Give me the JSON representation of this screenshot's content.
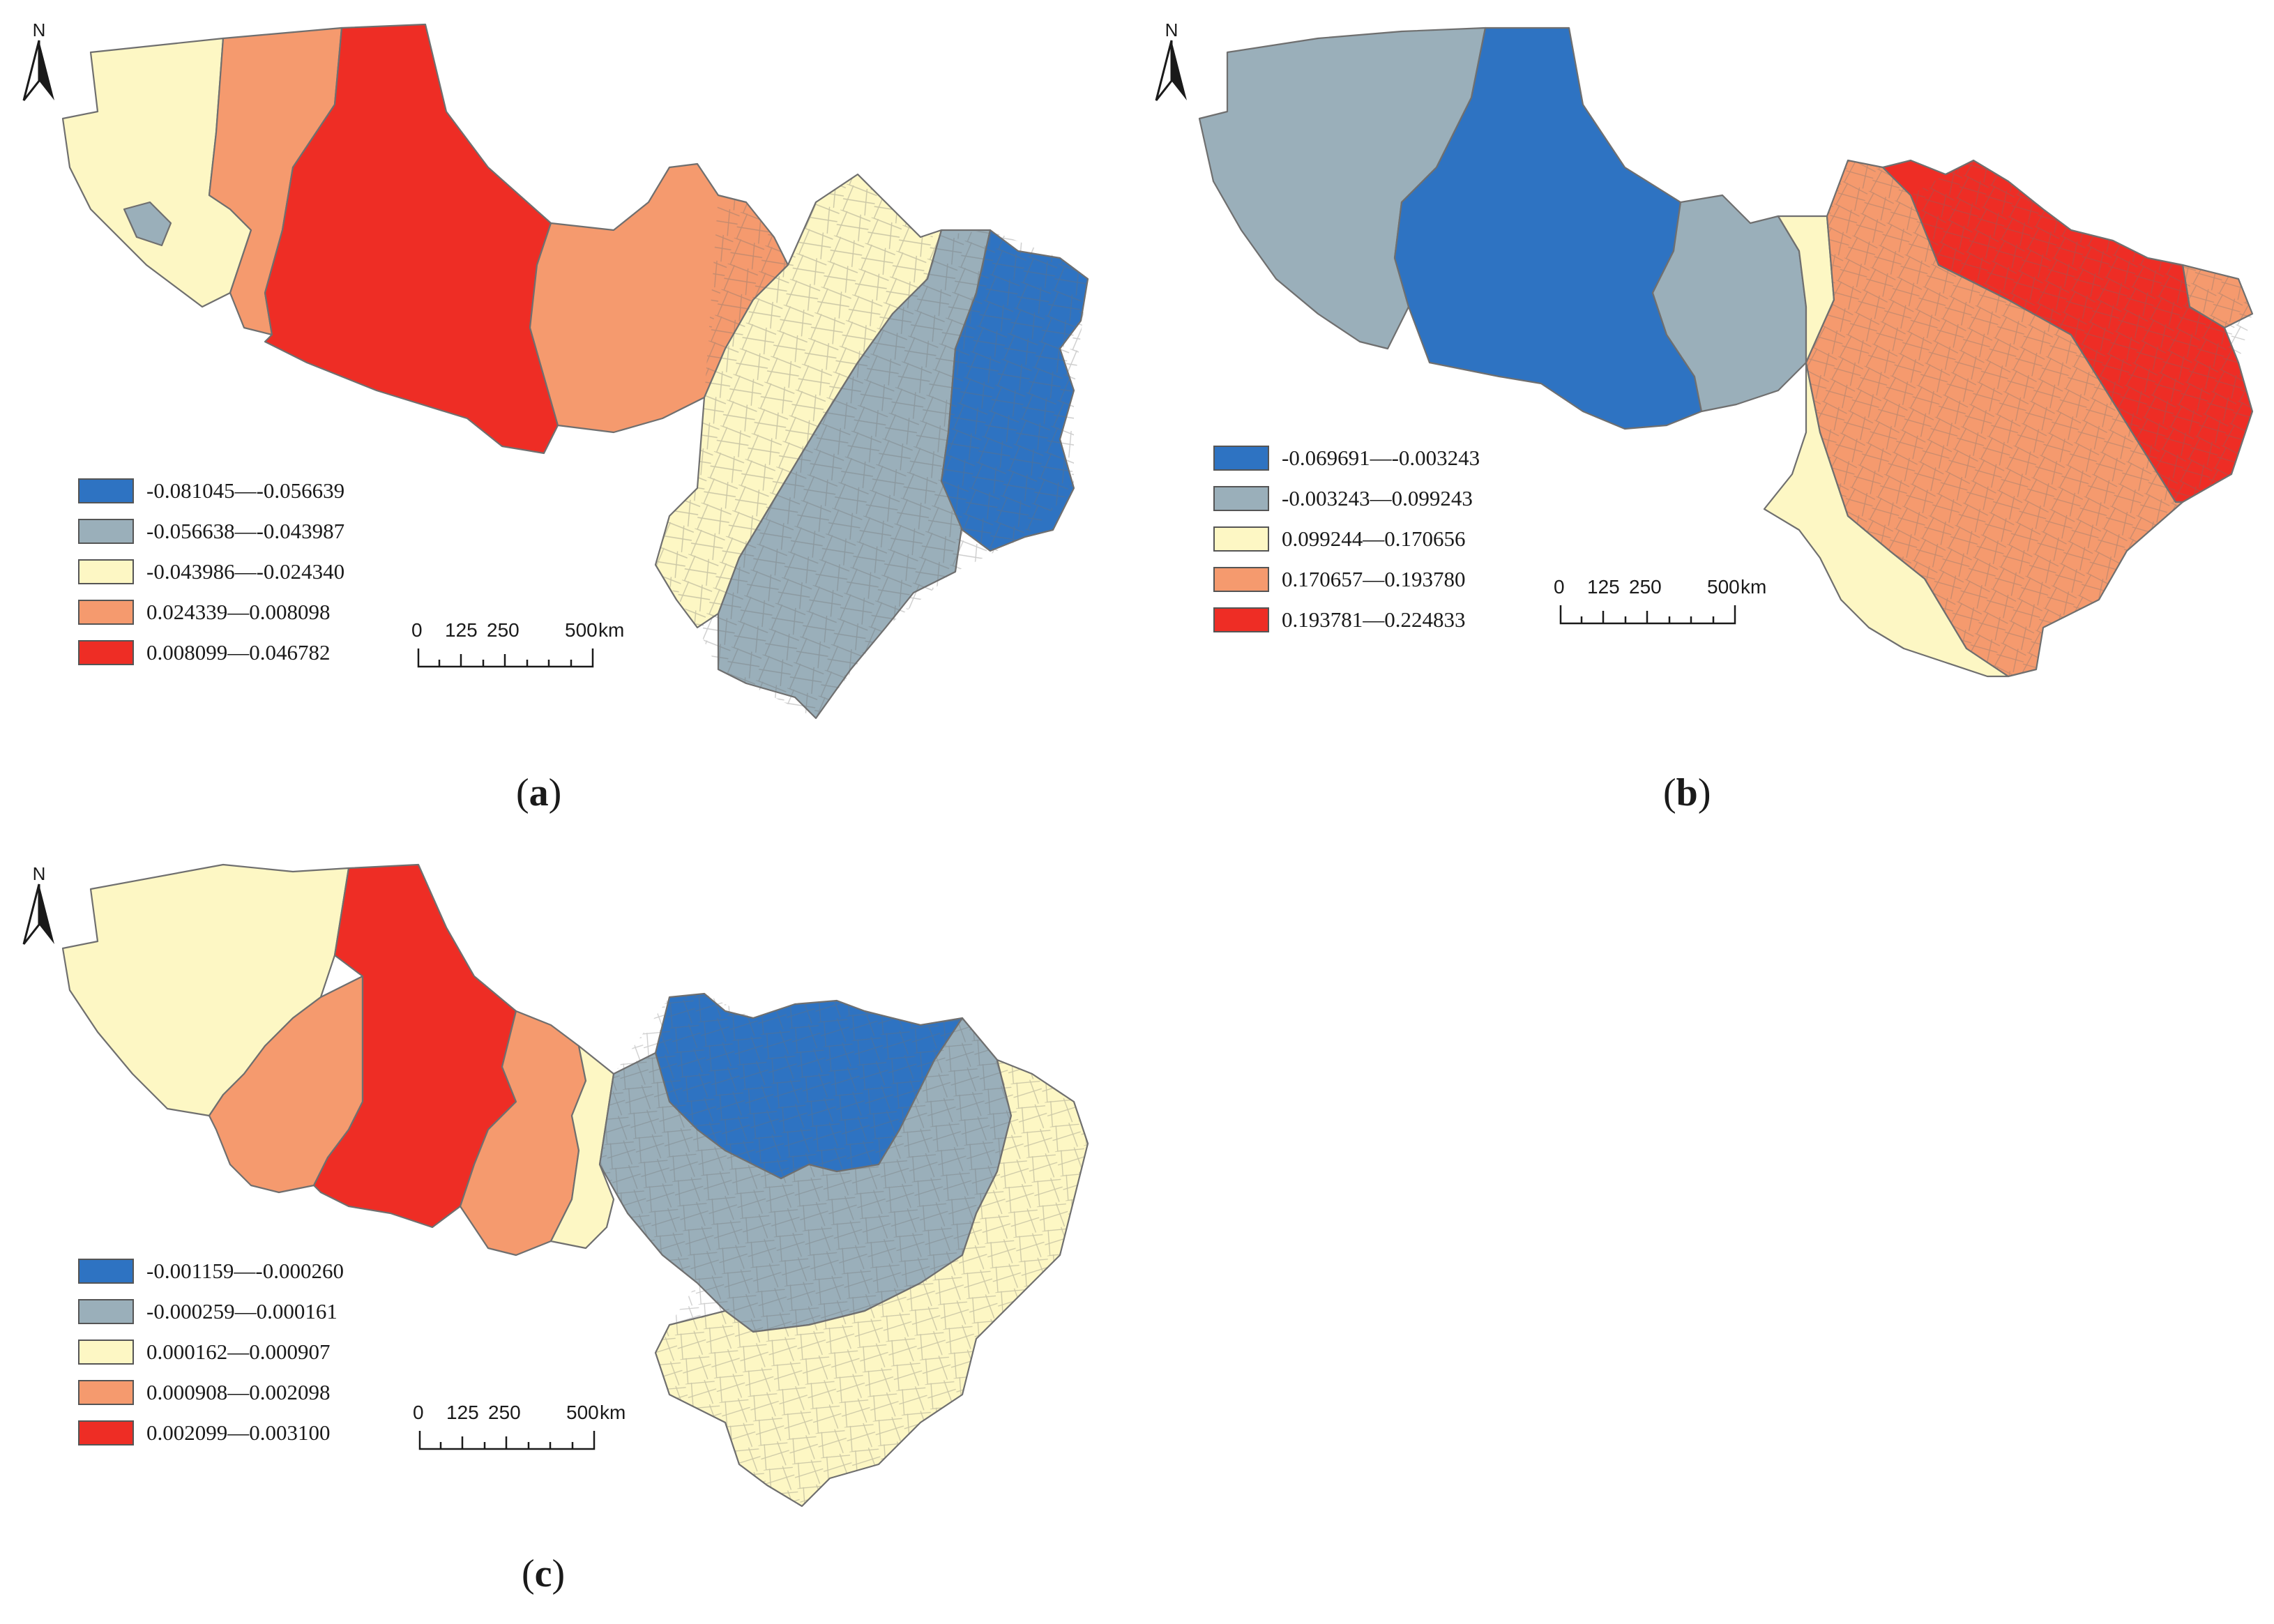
{
  "colors": {
    "class1": "#2e73c2",
    "class2": "#9aafba",
    "class3": "#fdf7c4",
    "class4": "#f59a6e",
    "class5": "#ee2d25",
    "boundary": "#6f6f6f"
  },
  "north_arrow": {
    "letter": "N",
    "icon": "north-arrow-icon"
  },
  "scale_bar": {
    "ticks": [
      "0",
      "125",
      "250",
      "500"
    ],
    "unit": "km"
  },
  "panels": [
    {
      "caption_letter": "a",
      "legend": [
        {
          "label": "-0.081045—-0.056639",
          "color": "#2e73c2"
        },
        {
          "label": "-0.056638—-0.043987",
          "color": "#9aafba"
        },
        {
          "label": "-0.043986—-0.024340",
          "color": "#fdf7c4"
        },
        {
          "label": "0.024339—0.008098",
          "color": "#f59a6e"
        },
        {
          "label": "0.008099—0.046782",
          "color": "#ee2d25"
        }
      ]
    },
    {
      "caption_letter": "b",
      "legend": [
        {
          "label": "-0.069691—-0.003243",
          "color": "#2e73c2"
        },
        {
          "label": "-0.003243—0.099243",
          "color": "#9aafba"
        },
        {
          "label": "0.099244—0.170656",
          "color": "#fdf7c4"
        },
        {
          "label": "0.170657—0.193780",
          "color": "#f59a6e"
        },
        {
          "label": "0.193781—0.224833",
          "color": "#ee2d25"
        }
      ]
    },
    {
      "caption_letter": "c",
      "legend": [
        {
          "label": "-0.001159—-0.000260",
          "color": "#2e73c2"
        },
        {
          "label": "-0.000259—0.000161",
          "color": "#9aafba"
        },
        {
          "label": "0.000162—0.000907",
          "color": "#fdf7c4"
        },
        {
          "label": "0.000908—0.002098",
          "color": "#f59a6e"
        },
        {
          "label": "0.002099—0.003100",
          "color": "#ee2d25"
        }
      ]
    }
  ]
}
